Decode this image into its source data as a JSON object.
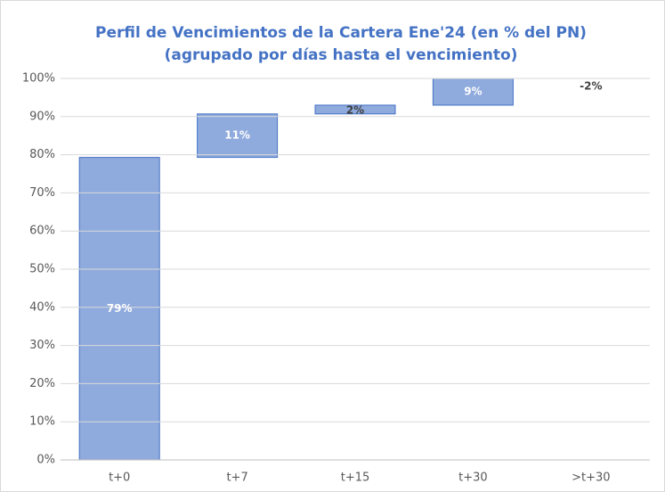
{
  "chart_data": {
    "type": "waterfall",
    "title": [
      "Perfil de Vencimientos de la Cartera Ene'24 (en % del PN)",
      "(agrupado por días hasta el vencimiento)"
    ],
    "categories": [
      "t+0",
      "t+7",
      "t+15",
      "t+30",
      ">t+30"
    ],
    "values": [
      79.3,
      11.4,
      2.3,
      9,
      -2
    ],
    "value_labels": [
      "79%",
      "11%",
      "2%",
      "9%",
      "-2%"
    ],
    "color": "#8faadc",
    "edge_color": "#4472c4",
    "negative_color": "#e06666",
    "ylim": [
      0,
      100
    ],
    "yticks": [
      {
        "value": 0,
        "label": "0%"
      },
      {
        "value": 10,
        "label": "10%"
      },
      {
        "value": 20,
        "label": "20%"
      },
      {
        "value": 30,
        "label": "30%"
      },
      {
        "value": 40,
        "label": "40%"
      },
      {
        "value": 50,
        "label": "50%"
      },
      {
        "value": 60,
        "label": "60%"
      },
      {
        "value": 70,
        "label": "70%"
      },
      {
        "value": 80,
        "label": "80%"
      },
      {
        "value": 90,
        "label": "90%"
      },
      {
        "value": 100,
        "label": "100%"
      }
    ],
    "grid": true
  }
}
